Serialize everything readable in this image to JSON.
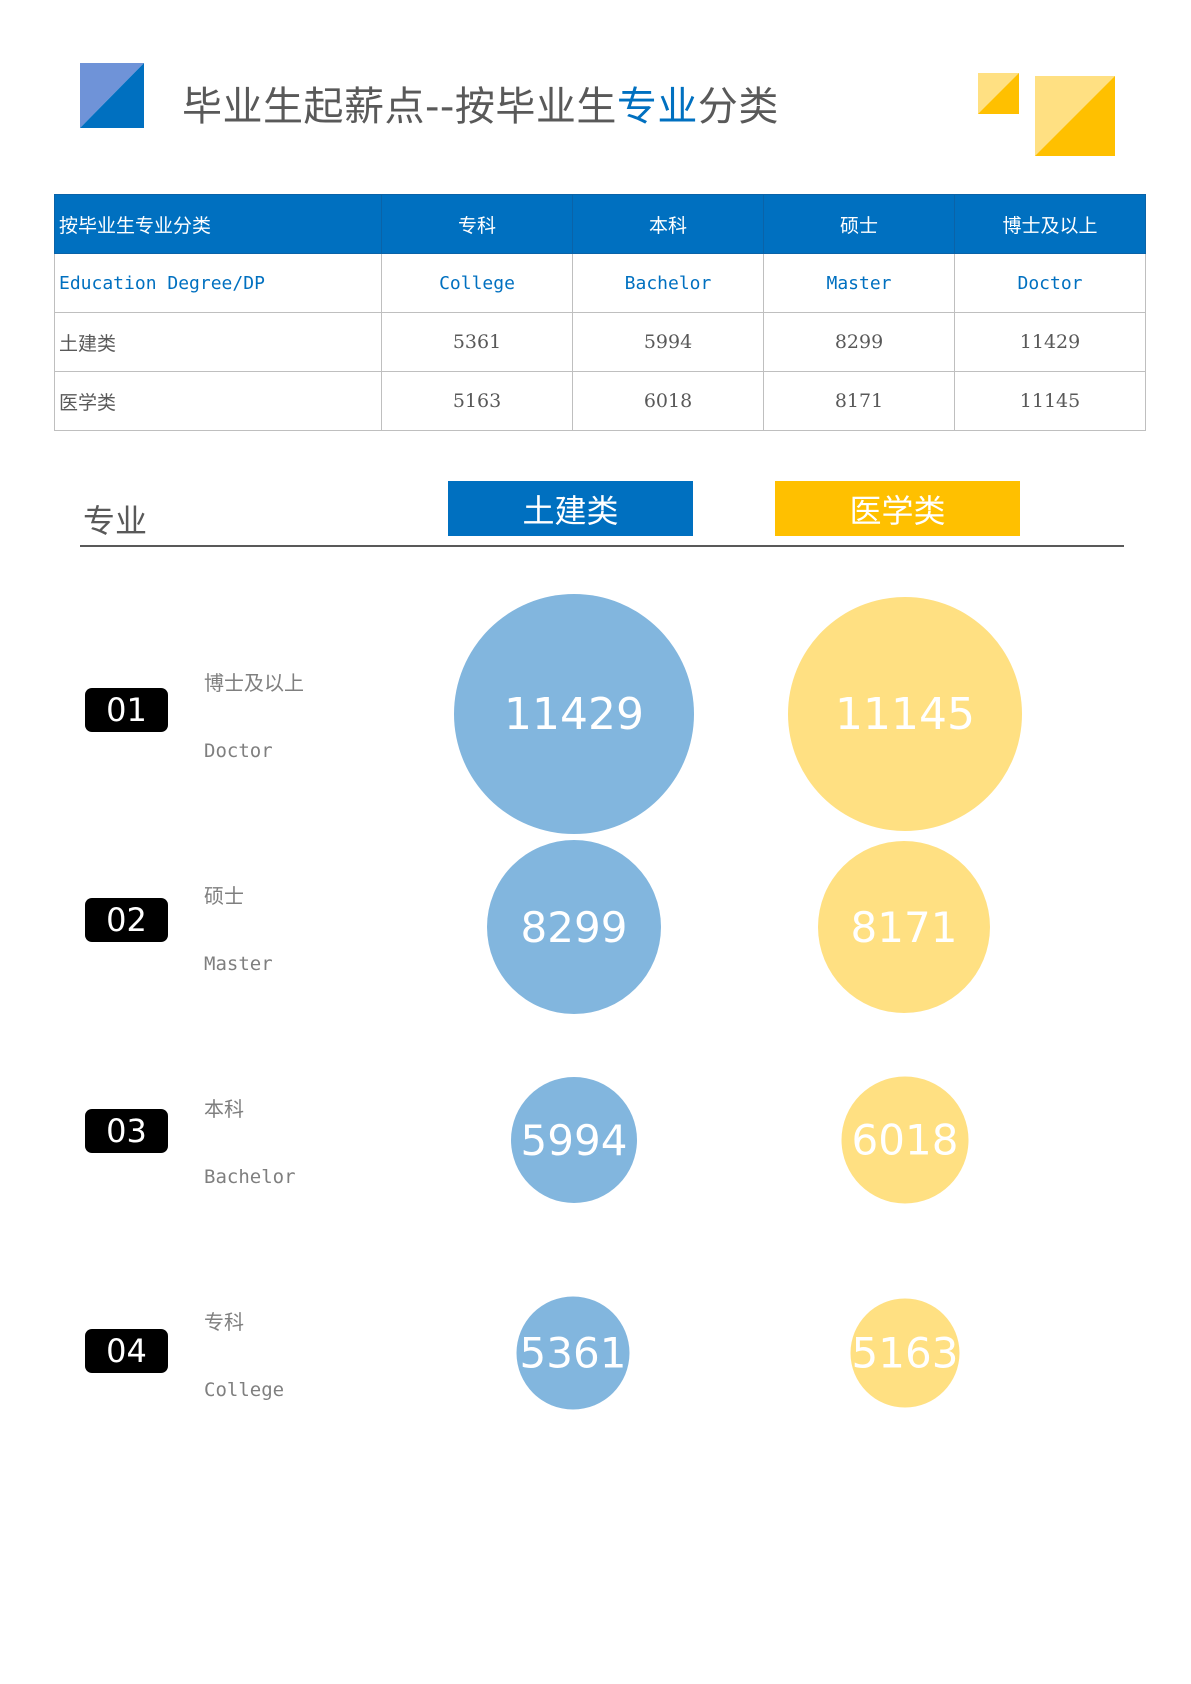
{
  "colors": {
    "civil": "#82b6de",
    "medical": "#ffe082",
    "blue": "#0070c0",
    "gold": "#ffc000"
  },
  "header": {
    "title_part1": "毕业生起薪点--按毕业生",
    "title_highlight": "专业",
    "title_part2": "分类"
  },
  "table": {
    "headers": [
      "按毕业生专业分类",
      "专科",
      "本科",
      "硕士",
      "博士及以上"
    ],
    "subheaders": [
      "Education Degree/DP",
      "College",
      "Bachelor",
      "Master",
      "Doctor"
    ],
    "rows": [
      [
        "土建类",
        "5361",
        "5994",
        "8299",
        "11429"
      ],
      [
        "医学类",
        "5163",
        "6018",
        "8171",
        "11145"
      ]
    ]
  },
  "legend": {
    "category_label": "专业",
    "civil": "土建类",
    "medical": "医学类"
  },
  "rows": [
    {
      "badge": "01",
      "cn": "博士及以上",
      "en": "Doctor",
      "civil": "11429",
      "medical": "11145"
    },
    {
      "badge": "02",
      "cn": "硕士",
      "en": "Master",
      "civil": "8299",
      "medical": "8171"
    },
    {
      "badge": "03",
      "cn": "本科",
      "en": "Bachelor",
      "civil": "5994",
      "medical": "6018"
    },
    {
      "badge": "04",
      "cn": "专科",
      "en": "College",
      "civil": "5361",
      "medical": "5163"
    }
  ]
}
